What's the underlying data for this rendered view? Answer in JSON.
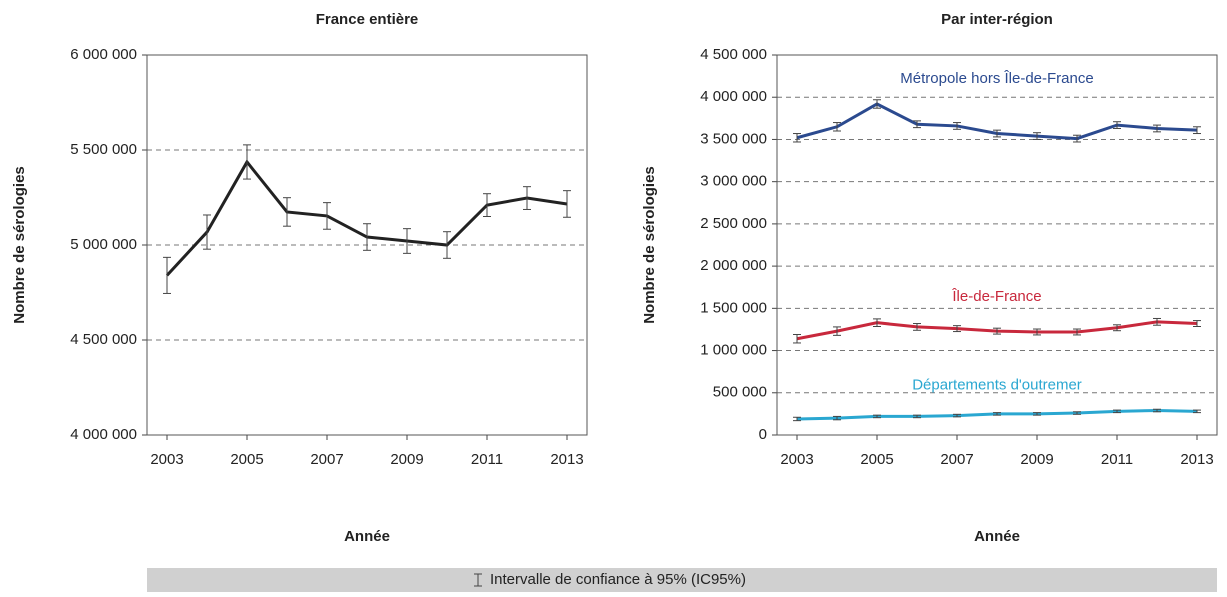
{
  "chart_data": [
    {
      "type": "line",
      "title": "France entière",
      "xlabel": "Année",
      "ylabel": "Nombre de sérologies",
      "x": [
        2003,
        2004,
        2005,
        2006,
        2007,
        2008,
        2009,
        2010,
        2011,
        2012,
        2013
      ],
      "xlim": [
        2002.5,
        2013.5
      ],
      "xticks": [
        2003,
        2005,
        2007,
        2009,
        2011,
        2013
      ],
      "ylim": [
        4000000,
        6000000
      ],
      "yticks": [
        {
          "value": 4000000,
          "label": "4 000 000"
        },
        {
          "value": 4500000,
          "label": "4 500 000"
        },
        {
          "value": 5000000,
          "label": "5 000 000"
        },
        {
          "value": 5500000,
          "label": "5 500 000"
        },
        {
          "value": 6000000,
          "label": "6 000 000"
        }
      ],
      "grid": true,
      "series": [
        {
          "color": "#222222",
          "values": [
            4840000,
            5068000,
            5437000,
            5174000,
            5153000,
            5042000,
            5021000,
            5000000,
            5210000,
            5247000,
            5216000
          ],
          "errors": [
            95000,
            90000,
            90000,
            75000,
            70000,
            70000,
            65000,
            70000,
            60000,
            60000,
            70000
          ]
        }
      ]
    },
    {
      "type": "line",
      "title": "Par inter-région",
      "xlabel": "Année",
      "ylabel": "Nombre de sérologies",
      "x": [
        2003,
        2004,
        2005,
        2006,
        2007,
        2008,
        2009,
        2010,
        2011,
        2012,
        2013
      ],
      "xlim": [
        2002.5,
        2013.5
      ],
      "xticks": [
        2003,
        2005,
        2007,
        2009,
        2011,
        2013
      ],
      "ylim": [
        0,
        4500000
      ],
      "yticks": [
        0,
        {
          "value": 500000,
          "label": "500 000"
        },
        {
          "value": 1000000,
          "label": "1 000 000"
        },
        {
          "value": 1500000,
          "label": "1 500 000"
        },
        {
          "value": 2000000,
          "label": "2 000 000"
        },
        {
          "value": 2500000,
          "label": "2 500 000"
        },
        {
          "value": 3000000,
          "label": "3 000 000"
        },
        {
          "value": 3500000,
          "label": "3 500 000"
        },
        {
          "value": 4000000,
          "label": "4 000 000"
        },
        {
          "value": 4500000,
          "label": "4 500 000"
        }
      ],
      "grid": true,
      "series": [
        {
          "name": "Métropole hors Île-de-France",
          "color": "#2b4a8f",
          "values": [
            3520000,
            3650000,
            3920000,
            3680000,
            3660000,
            3570000,
            3540000,
            3510000,
            3670000,
            3630000,
            3610000
          ],
          "errors": [
            50000,
            50000,
            50000,
            40000,
            40000,
            40000,
            40000,
            40000,
            40000,
            40000,
            40000
          ]
        },
        {
          "name": "Île-de-France",
          "color": "#c8283c",
          "values": [
            1140000,
            1230000,
            1330000,
            1280000,
            1260000,
            1230000,
            1220000,
            1220000,
            1270000,
            1340000,
            1320000
          ],
          "errors": [
            50000,
            50000,
            45000,
            40000,
            35000,
            35000,
            35000,
            35000,
            35000,
            40000,
            35000
          ]
        },
        {
          "name": "Départements d'outremer",
          "color": "#2aa7d1",
          "values": [
            190000,
            200000,
            220000,
            220000,
            230000,
            250000,
            250000,
            260000,
            280000,
            290000,
            280000
          ],
          "errors": [
            20000,
            20000,
            15000,
            15000,
            15000,
            15000,
            15000,
            15000,
            15000,
            15000,
            15000
          ]
        }
      ]
    }
  ],
  "legend_note": "Intervalle de confiance à 95% (IC95%)"
}
